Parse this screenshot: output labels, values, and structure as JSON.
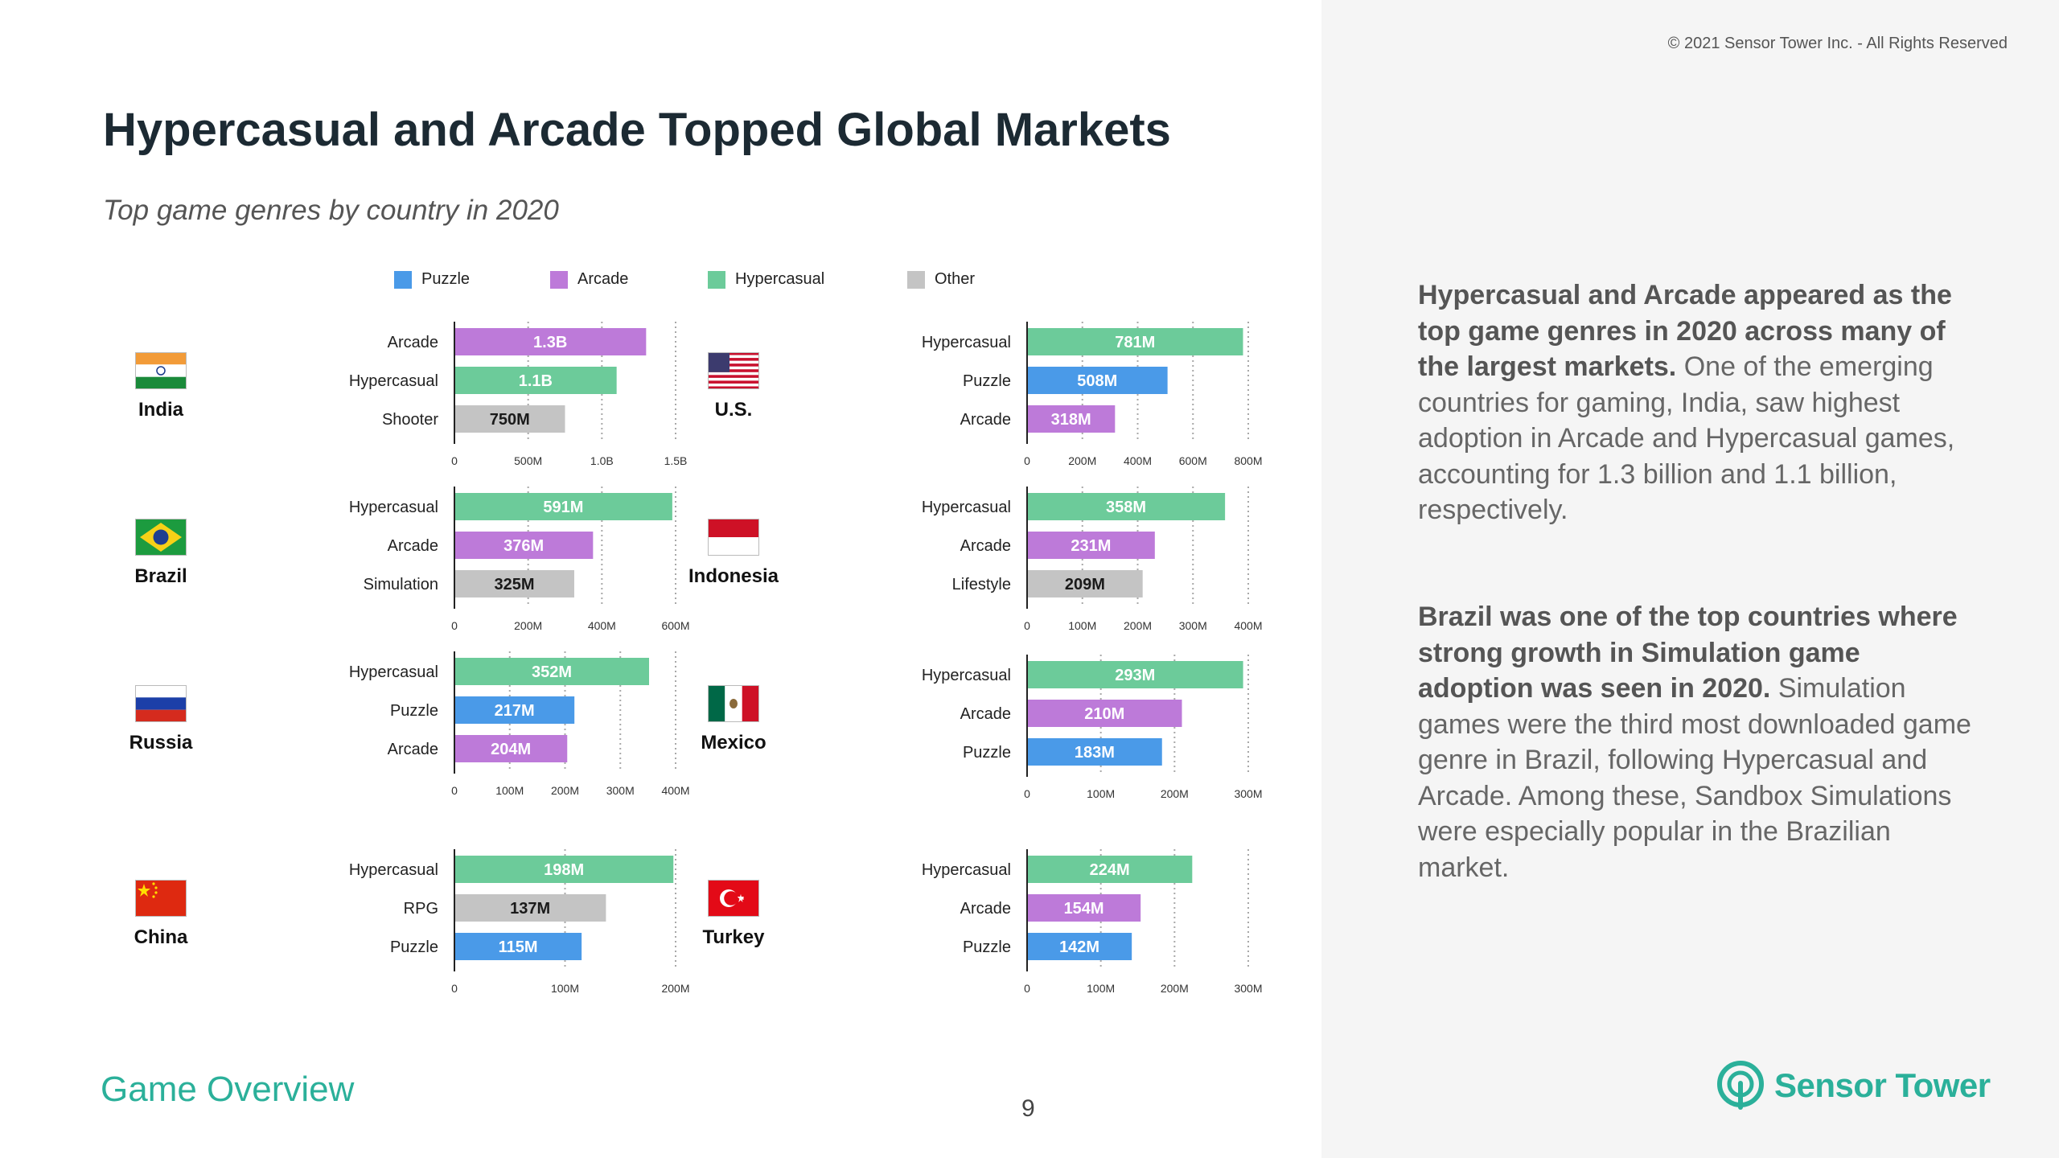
{
  "header": {
    "copyright": "© 2021 Sensor Tower Inc. - All Rights Reserved"
  },
  "title": "Hypercasual and Arcade Topped Global Markets",
  "subtitle": "Top game genres by country in 2020",
  "legend": [
    {
      "label": "Puzzle",
      "color": "#4a9ae8"
    },
    {
      "label": "Arcade",
      "color": "#bd7ad9"
    },
    {
      "label": "Hypercasual",
      "color": "#6ccb9a"
    },
    {
      "label": "Other",
      "color": "#c4c4c4"
    }
  ],
  "colors": {
    "Puzzle": "#4a9ae8",
    "Arcade": "#bd7ad9",
    "Hypercasual": "#6ccb9a",
    "Other": "#c4c4c4"
  },
  "chart_data": [
    {
      "type": "bar",
      "country": "India",
      "flag": "india-flag",
      "categories": [
        "Arcade",
        "Hypercasual",
        "Shooter"
      ],
      "values": [
        1300000000,
        1100000000,
        750000000
      ],
      "labels": [
        "1.3B",
        "1.1B",
        "750M"
      ],
      "genre": [
        "Arcade",
        "Hypercasual",
        "Other"
      ],
      "ticks": [
        0,
        500000000,
        1000000000,
        1500000000
      ],
      "tick_labels": [
        "0",
        "500M",
        "1.0B",
        "1.5B"
      ],
      "xlim": [
        0,
        1500000000
      ]
    },
    {
      "type": "bar",
      "country": "U.S.",
      "flag": "us-flag",
      "categories": [
        "Hypercasual",
        "Puzzle",
        "Arcade"
      ],
      "values": [
        781000000,
        508000000,
        318000000
      ],
      "labels": [
        "781M",
        "508M",
        "318M"
      ],
      "genre": [
        "Hypercasual",
        "Puzzle",
        "Arcade"
      ],
      "ticks": [
        0,
        200000000,
        400000000,
        600000000,
        800000000
      ],
      "tick_labels": [
        "0",
        "200M",
        "400M",
        "600M",
        "800M"
      ],
      "xlim": [
        0,
        800000000
      ]
    },
    {
      "type": "bar",
      "country": "Brazil",
      "flag": "brazil-flag",
      "categories": [
        "Hypercasual",
        "Arcade",
        "Simulation"
      ],
      "values": [
        591000000,
        376000000,
        325000000
      ],
      "labels": [
        "591M",
        "376M",
        "325M"
      ],
      "genre": [
        "Hypercasual",
        "Arcade",
        "Other"
      ],
      "ticks": [
        0,
        200000000,
        400000000,
        600000000
      ],
      "tick_labels": [
        "0",
        "200M",
        "400M",
        "600M"
      ],
      "xlim": [
        0,
        600000000
      ]
    },
    {
      "type": "bar",
      "country": "Indonesia",
      "flag": "indonesia-flag",
      "categories": [
        "Hypercasual",
        "Arcade",
        "Lifestyle"
      ],
      "values": [
        358000000,
        231000000,
        209000000
      ],
      "labels": [
        "358M",
        "231M",
        "209M"
      ],
      "genre": [
        "Hypercasual",
        "Arcade",
        "Other"
      ],
      "ticks": [
        0,
        100000000,
        200000000,
        300000000,
        400000000
      ],
      "tick_labels": [
        "0",
        "100M",
        "200M",
        "300M",
        "400M"
      ],
      "xlim": [
        0,
        400000000
      ]
    },
    {
      "type": "bar",
      "country": "Russia",
      "flag": "russia-flag",
      "categories": [
        "Hypercasual",
        "Puzzle",
        "Arcade"
      ],
      "values": [
        352000000,
        217000000,
        204000000
      ],
      "labels": [
        "352M",
        "217M",
        "204M"
      ],
      "genre": [
        "Hypercasual",
        "Puzzle",
        "Arcade"
      ],
      "ticks": [
        0,
        100000000,
        200000000,
        300000000,
        400000000
      ],
      "tick_labels": [
        "0",
        "100M",
        "200M",
        "300M",
        "400M"
      ],
      "xlim": [
        0,
        400000000
      ]
    },
    {
      "type": "bar",
      "country": "Mexico",
      "flag": "mexico-flag",
      "categories": [
        "Hypercasual",
        "Arcade",
        "Puzzle"
      ],
      "values": [
        293000000,
        210000000,
        183000000
      ],
      "labels": [
        "293M",
        "210M",
        "183M"
      ],
      "genre": [
        "Hypercasual",
        "Arcade",
        "Puzzle"
      ],
      "ticks": [
        0,
        100000000,
        200000000,
        300000000
      ],
      "tick_labels": [
        "0",
        "100M",
        "200M",
        "300M"
      ],
      "xlim": [
        0,
        300000000
      ]
    },
    {
      "type": "bar",
      "country": "China",
      "flag": "china-flag",
      "categories": [
        "Hypercasual",
        "RPG",
        "Puzzle"
      ],
      "values": [
        198000000,
        137000000,
        115000000
      ],
      "labels": [
        "198M",
        "137M",
        "115M"
      ],
      "genre": [
        "Hypercasual",
        "Other",
        "Puzzle"
      ],
      "ticks": [
        0,
        100000000,
        200000000
      ],
      "tick_labels": [
        "0",
        "100M",
        "200M"
      ],
      "xlim": [
        0,
        200000000
      ]
    },
    {
      "type": "bar",
      "country": "Turkey",
      "flag": "turkey-flag",
      "categories": [
        "Hypercasual",
        "Arcade",
        "Puzzle"
      ],
      "values": [
        224000000,
        154000000,
        142000000
      ],
      "labels": [
        "224M",
        "154M",
        "142M"
      ],
      "genre": [
        "Hypercasual",
        "Arcade",
        "Puzzle"
      ],
      "ticks": [
        0,
        100000000,
        200000000,
        300000000
      ],
      "tick_labels": [
        "0",
        "100M",
        "200M",
        "300M"
      ],
      "xlim": [
        0,
        300000000
      ]
    }
  ],
  "commentary": {
    "p1_bold": "Hypercasual and Arcade appeared as the top game genres in 2020 across many of the largest markets.",
    "p1_text": " One of the emerging countries for gaming, India, saw highest adoption in Arcade and Hypercasual games, accounting for 1.3 billion and 1.1 billion, respectively.",
    "p2_bold": "Brazil was one of the top countries where strong growth in Simulation game adoption was seen in 2020.",
    "p2_text": " Simulation games were the third most downloaded game genre in Brazil, following Hypercasual and Arcade. Among these, Sandbox Simulations were especially popular in the Brazilian market."
  },
  "footer": {
    "section": "Game Overview",
    "page": "9",
    "logo_text": "Sensor Tower",
    "logo_icon": "sensor-tower-icon"
  }
}
